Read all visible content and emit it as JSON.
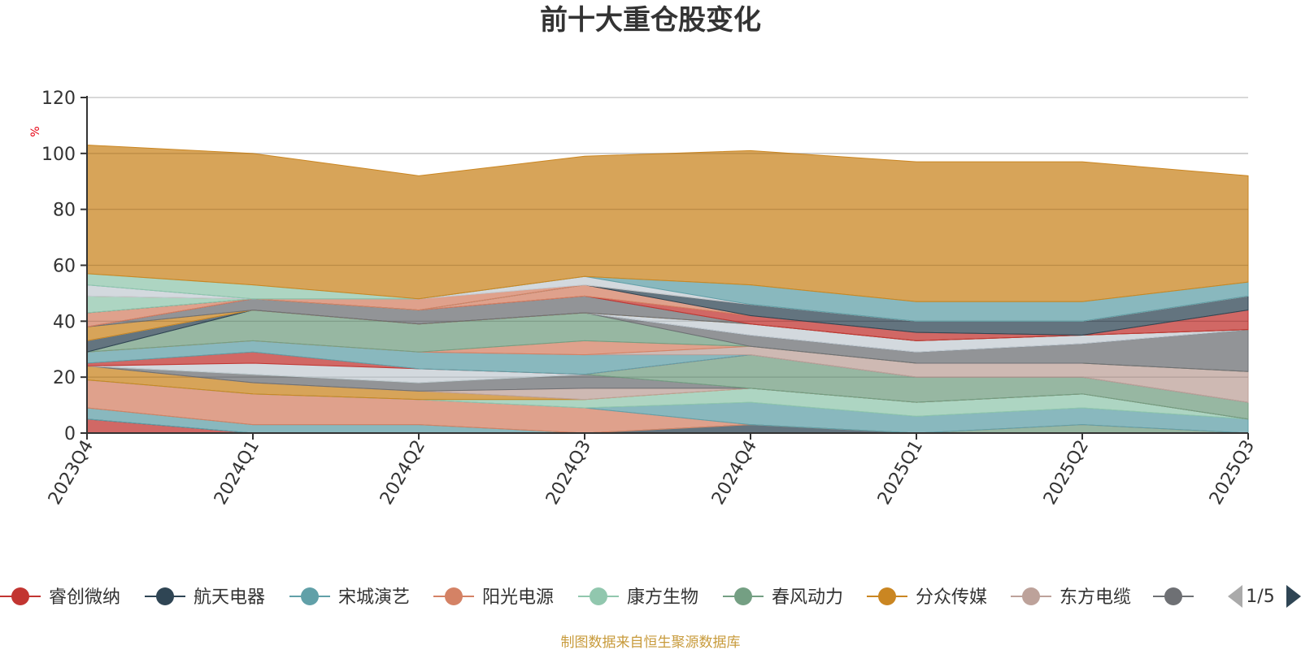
{
  "chart_data": {
    "type": "area",
    "title": "前十大重仓股变化",
    "ylabel": "%",
    "ylim": [
      0,
      120
    ],
    "yticks": [
      0,
      20,
      40,
      60,
      80,
      100,
      120
    ],
    "grid": true,
    "categories": [
      "2023Q4",
      "2024Q1",
      "2024Q2",
      "2024Q3",
      "2024Q4",
      "2025Q1",
      "2025Q2",
      "2025Q3"
    ],
    "layers": [
      {
        "color": "#c23531",
        "values": [
          5,
          0,
          0,
          0,
          0,
          0,
          0,
          0
        ]
      },
      {
        "color": "#2f4554",
        "values": [
          0,
          0,
          0,
          0,
          3,
          0,
          0,
          0
        ]
      },
      {
        "color": "#61a0a8",
        "values": [
          4,
          3,
          3,
          0,
          0,
          0,
          0,
          0
        ]
      },
      {
        "color": "#749f83",
        "values": [
          0,
          0,
          0,
          0,
          0,
          0,
          3,
          0
        ]
      },
      {
        "color": "#d48265",
        "values": [
          10,
          11,
          9,
          9,
          0,
          0,
          0,
          0
        ]
      },
      {
        "color": "#61a0a8",
        "values": [
          0,
          0,
          0,
          0,
          8,
          6,
          6,
          5
        ]
      },
      {
        "color": "#91c7ae",
        "values": [
          0,
          0,
          0,
          3,
          5,
          5,
          5,
          0
        ]
      },
      {
        "color": "#ca8622",
        "values": [
          5,
          4,
          3,
          0,
          0,
          0,
          0,
          0
        ]
      },
      {
        "color": "#bda29a",
        "values": [
          0,
          0,
          0,
          4,
          0,
          0,
          0,
          0
        ]
      },
      {
        "color": "#6e7074",
        "values": [
          0,
          3,
          3,
          5,
          0,
          0,
          0,
          0
        ]
      },
      {
        "color": "#749f83",
        "values": [
          0,
          0,
          0,
          0,
          12,
          9,
          6,
          6
        ]
      },
      {
        "color": "#c4ccd3",
        "values": [
          0,
          4,
          5,
          0,
          0,
          0,
          0,
          0
        ]
      },
      {
        "color": "#c23531",
        "values": [
          1,
          4,
          0,
          0,
          0,
          0,
          0,
          0
        ]
      },
      {
        "color": "#61a0a8",
        "values": [
          4,
          4,
          6,
          7,
          0,
          0,
          0,
          0
        ]
      },
      {
        "color": "#bda29a",
        "values": [
          0,
          0,
          0,
          0,
          3,
          5,
          5,
          11
        ]
      },
      {
        "color": "#d48265",
        "values": [
          0,
          0,
          0,
          5,
          0,
          0,
          0,
          0
        ]
      },
      {
        "color": "#749f83",
        "values": [
          0,
          11,
          10,
          10,
          0,
          0,
          0,
          0
        ]
      },
      {
        "color": "#6e7074",
        "values": [
          0,
          0,
          0,
          0,
          4,
          4,
          7,
          15
        ]
      },
      {
        "color": "#2f4554",
        "values": [
          4,
          0,
          0,
          0,
          0,
          0,
          0,
          0
        ]
      },
      {
        "color": "#c4ccd3",
        "values": [
          0,
          0,
          0,
          0,
          4,
          4,
          3,
          0
        ]
      },
      {
        "color": "#ca8622",
        "values": [
          5,
          0,
          0,
          0,
          0,
          0,
          0,
          0
        ]
      },
      {
        "color": "#6e7074",
        "values": [
          0,
          4,
          5,
          6,
          0,
          0,
          0,
          0
        ]
      },
      {
        "color": "#c23531",
        "values": [
          0,
          0,
          0,
          0,
          3,
          3,
          0,
          7
        ]
      },
      {
        "color": "#d48265",
        "values": [
          5,
          0,
          0,
          4,
          0,
          0,
          0,
          0
        ]
      },
      {
        "color": "#2f4554",
        "values": [
          0,
          0,
          0,
          0,
          4,
          4,
          5,
          5
        ]
      },
      {
        "color": "#91c7ae",
        "values": [
          6,
          0,
          0,
          0,
          0,
          0,
          0,
          0
        ]
      },
      {
        "color": "#d48265",
        "values": [
          0,
          0,
          4,
          0,
          0,
          0,
          0,
          0
        ]
      },
      {
        "color": "#c4ccd3",
        "values": [
          4,
          0,
          0,
          3,
          0,
          0,
          0,
          0
        ]
      },
      {
        "color": "#61a0a8",
        "values": [
          0,
          0,
          0,
          0,
          7,
          7,
          7,
          5
        ]
      },
      {
        "color": "#91c7ae",
        "values": [
          4,
          5,
          0,
          0,
          0,
          0,
          0,
          0
        ]
      },
      {
        "color": "#ca8622",
        "values": [
          46,
          47,
          44,
          43,
          48,
          50,
          50,
          38
        ]
      }
    ]
  },
  "legend": {
    "items": [
      {
        "label": "睿创微纳",
        "color": "#c23531"
      },
      {
        "label": "航天电器",
        "color": "#2f4554"
      },
      {
        "label": "宋城演艺",
        "color": "#61a0a8"
      },
      {
        "label": "阳光电源",
        "color": "#d48265"
      },
      {
        "label": "康方生物",
        "color": "#91c7ae"
      },
      {
        "label": "春风动力",
        "color": "#749f83"
      },
      {
        "label": "分众传媒",
        "color": "#ca8622"
      },
      {
        "label": "东方电缆",
        "color": "#bda29a"
      },
      {
        "label": "",
        "color": "#6e7074"
      }
    ],
    "page": "1/5"
  },
  "source": "制图数据来自恒生聚源数据库"
}
